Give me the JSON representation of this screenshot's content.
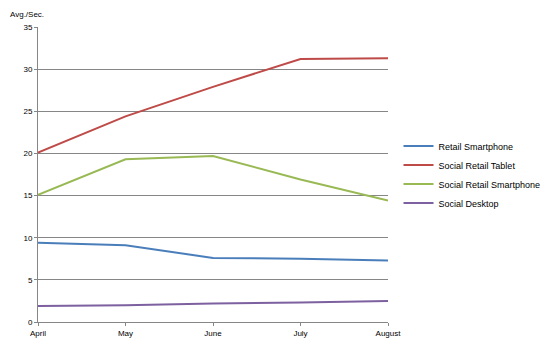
{
  "chart_data": {
    "type": "line",
    "ylabel": "Avg./Sec.",
    "categories": [
      "April",
      "May",
      "June",
      "July",
      "August"
    ],
    "series": [
      {
        "name": "Retail Smartphone",
        "color": "#4a7ebb",
        "values": [
          9.4,
          9.1,
          7.6,
          7.5,
          7.3
        ]
      },
      {
        "name": "Social Retail Tablet",
        "color": "#be4b48",
        "values": [
          20.1,
          24.4,
          27.9,
          31.2,
          31.3
        ]
      },
      {
        "name": "Social Retail Smartphone",
        "color": "#98b954",
        "values": [
          15.1,
          19.3,
          19.7,
          16.9,
          14.4
        ]
      },
      {
        "name": "Social Desktop",
        "color": "#7d60a0",
        "values": [
          1.9,
          2.0,
          2.2,
          2.3,
          2.5
        ]
      }
    ],
    "ylim": [
      0,
      35
    ],
    "yticks": [
      0,
      5,
      10,
      15,
      20,
      25,
      30,
      35
    ],
    "grid": true,
    "legend": "right"
  }
}
